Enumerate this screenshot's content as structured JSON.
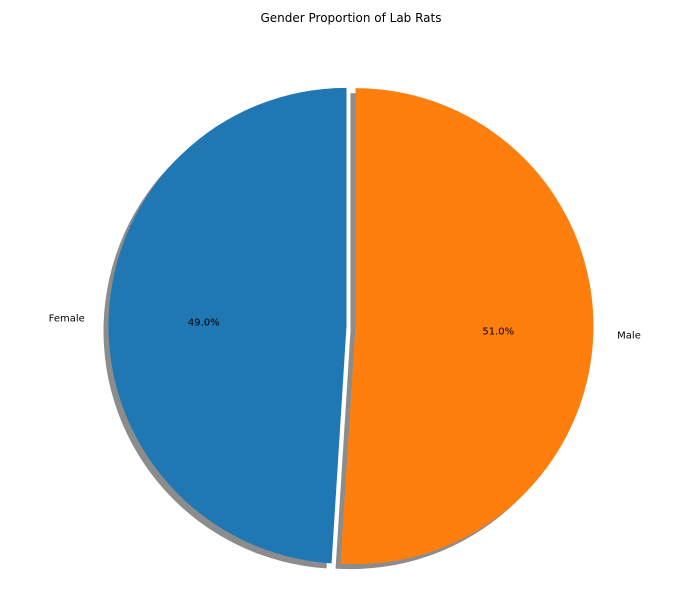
{
  "chart_data": {
    "type": "pie",
    "title": "Gender Proportion of Lab Rats",
    "categories": [
      "Female",
      "Male"
    ],
    "values": [
      49.0,
      51.0
    ],
    "percent_labels": [
      "49.0%",
      "51.0%"
    ],
    "colors": [
      "#1f77b4",
      "#ff7f0e"
    ],
    "explode": [
      0.0,
      0.0
    ],
    "shadow": true,
    "start_angle_deg": 90,
    "direction": "counterclockwise",
    "legend": "none"
  }
}
